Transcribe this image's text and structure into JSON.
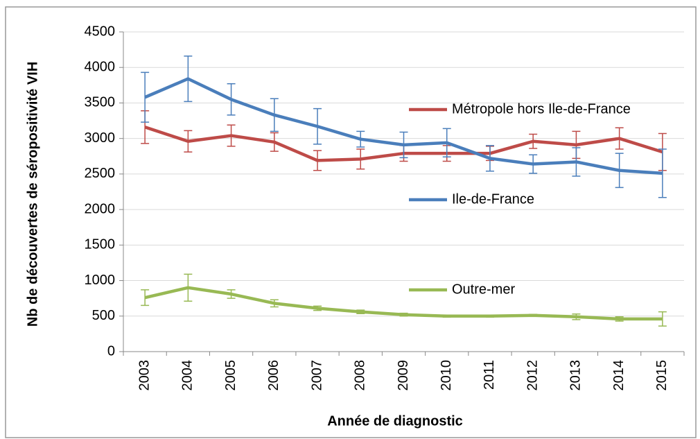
{
  "chart_data": {
    "type": "line",
    "x_label": "Année de diagnostic",
    "y_label": "Nb de découvertes de séropositivité VIH",
    "categories": [
      "2003",
      "2004",
      "2005",
      "2006",
      "2007",
      "2008",
      "2009",
      "2010",
      "2011",
      "2012",
      "2013",
      "2014",
      "2015"
    ],
    "series": [
      {
        "name": "Métropole hors Ile-de-France",
        "color": "#be4b48",
        "values": [
          3160,
          2960,
          3040,
          2950,
          2690,
          2710,
          2790,
          2790,
          2790,
          2960,
          2910,
          3000,
          2810
        ],
        "errors": [
          230,
          150,
          150,
          130,
          140,
          140,
          110,
          110,
          100,
          100,
          190,
          150,
          260
        ]
      },
      {
        "name": "Ile-de-France",
        "color": "#4a7ebb",
        "values": [
          3580,
          3840,
          3550,
          3330,
          3170,
          2990,
          2910,
          2940,
          2720,
          2640,
          2670,
          2550,
          2510
        ],
        "errors": [
          350,
          320,
          220,
          230,
          250,
          110,
          180,
          200,
          180,
          130,
          200,
          240,
          340
        ]
      },
      {
        "name": "Outre-mer",
        "color": "#98b954",
        "values": [
          760,
          900,
          810,
          680,
          610,
          560,
          520,
          500,
          500,
          510,
          490,
          460,
          460
        ],
        "errors": [
          110,
          190,
          60,
          50,
          30,
          25,
          20,
          15,
          15,
          15,
          40,
          30,
          100
        ]
      }
    ],
    "ylim": [
      0,
      4500
    ],
    "yticks": [
      0,
      500,
      1000,
      1500,
      2000,
      2500,
      3000,
      3500,
      4000,
      4500
    ],
    "grid": true
  }
}
